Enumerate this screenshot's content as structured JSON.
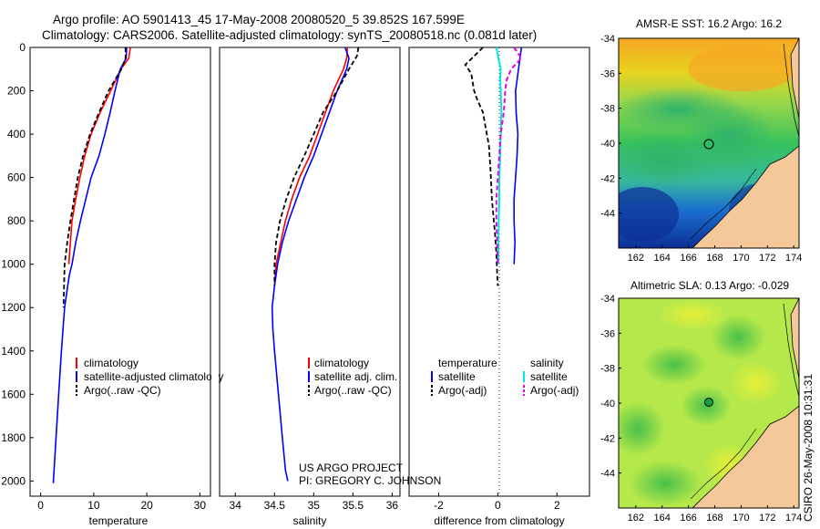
{
  "title_line1": "Argo profile: AO 5901413_45 17-May-2008 20080520_5 39.852S 167.599E",
  "title_line2": "Climatology: CARS2006. Satellite-adjusted climatology: synTS_20080518.nc (0.081d later)",
  "colors": {
    "climatology": "#ff0000",
    "satellite": "#0000ff",
    "argo": "#000000",
    "salinity_sat": "#00e5e5",
    "salinity_argo": "#e600e6",
    "land": "#f5c89a",
    "marker": "#1a9e3a"
  },
  "chart_data": [
    {
      "type": "line",
      "name": "temperature_profile",
      "xlabel": "temperature",
      "ylabel": "",
      "xlim": [
        -2,
        32
      ],
      "ylim": [
        0,
        2070
      ],
      "xticks": [
        "0",
        "10",
        "20",
        "30"
      ],
      "yticks": [
        "0",
        "200",
        "400",
        "600",
        "800",
        "1000",
        "1200",
        "1400",
        "1600",
        "1800",
        "2000"
      ],
      "legend": [
        "climatology",
        "satellite-adjusted climatology",
        "Argo(..raw -QC)"
      ],
      "series": [
        {
          "name": "climatology",
          "x": [
            16.9,
            16.6,
            15.1,
            13.2,
            11.2,
            9.5,
            8.3,
            7.4,
            6.6,
            5.9,
            5.3
          ],
          "y": [
            0,
            50,
            100,
            200,
            300,
            400,
            500,
            600,
            700,
            800,
            1000
          ]
        },
        {
          "name": "satellite-adjusted climatology",
          "x": [
            16.2,
            16.1,
            15.0,
            14.0,
            13.1,
            12.1,
            11.0,
            9.5,
            8.5,
            7.5,
            6.6,
            5.9,
            5.4,
            5.1,
            4.5,
            3.9,
            3.4,
            2.9,
            2.4,
            2.4
          ],
          "y": [
            0,
            50,
            100,
            200,
            300,
            400,
            500,
            600,
            700,
            800,
            900,
            1000,
            1050,
            1100,
            1200,
            1400,
            1600,
            1800,
            2000,
            2010
          ]
        },
        {
          "name": "Argo(..raw -QC)",
          "x": [
            16.0,
            16.0,
            15.2,
            12.8,
            11.0,
            9.3,
            8.0,
            7.0,
            6.3,
            5.6,
            5.0,
            4.5,
            4.3
          ],
          "y": [
            0,
            50,
            100,
            200,
            300,
            400,
            500,
            600,
            700,
            800,
            900,
            1000,
            1200
          ]
        }
      ]
    },
    {
      "type": "line",
      "name": "salinity_profile",
      "xlabel": "salinity",
      "xlim": [
        33.8,
        36.1
      ],
      "ylim": [
        0,
        2070
      ],
      "xticks": [
        "34",
        "34.5",
        "35",
        "35.5",
        "36"
      ],
      "legend": [
        "climatology",
        "satellite adj. clim.",
        "Argo(..raw -QC)"
      ],
      "series": [
        {
          "name": "climatology",
          "x": [
            35.43,
            35.42,
            35.38,
            35.25,
            35.15,
            35.05,
            34.95,
            34.82,
            34.72,
            34.64,
            34.58,
            34.52,
            34.5
          ],
          "y": [
            0,
            50,
            100,
            200,
            300,
            400,
            500,
            600,
            700,
            800,
            900,
            1000,
            1100
          ]
        },
        {
          "name": "satellite adj. clim.",
          "x": [
            35.4,
            35.45,
            35.42,
            35.3,
            35.2,
            35.1,
            35.0,
            34.88,
            34.78,
            34.68,
            34.6,
            34.54,
            34.5,
            34.47,
            34.48,
            34.5,
            34.55,
            34.6,
            34.64,
            34.67
          ],
          "y": [
            0,
            50,
            100,
            200,
            300,
            400,
            500,
            600,
            700,
            800,
            900,
            1000,
            1100,
            1200,
            1300,
            1400,
            1600,
            1800,
            1950,
            2000
          ]
        },
        {
          "name": "Argo(..raw -QC)",
          "x": [
            35.57,
            35.55,
            35.45,
            35.3,
            35.12,
            35.0,
            34.88,
            34.75,
            34.65,
            34.57,
            34.52,
            34.5,
            34.5
          ],
          "y": [
            0,
            40,
            100,
            200,
            300,
            400,
            500,
            600,
            700,
            800,
            900,
            1000,
            1100
          ]
        }
      ]
    },
    {
      "type": "line",
      "name": "difference_from_climatology",
      "xlabel": "difference from climatology",
      "xlim": [
        -3,
        3.1
      ],
      "ylim": [
        0,
        2070
      ],
      "xticks": [
        "-2",
        "0",
        "2"
      ],
      "legend_title_left": "temperature",
      "legend_title_right": "salinity",
      "legend": [
        "satellite",
        "Argo(-adj)",
        "satellite",
        "Argo(-adj)"
      ],
      "series": [
        {
          "name": "temperature satellite",
          "x": [
            0.8,
            0.75,
            0.7,
            0.65,
            0.6,
            0.62,
            0.68,
            0.65,
            0.6,
            0.55,
            0.55,
            0.58,
            0.55
          ],
          "y": [
            0,
            50,
            100,
            150,
            200,
            300,
            400,
            500,
            600,
            700,
            800,
            900,
            1000
          ]
        },
        {
          "name": "temperature Argo(-adj)",
          "x": [
            -0.5,
            -1.1,
            -0.9,
            -0.8,
            -0.7,
            -0.5,
            -0.4,
            -0.3,
            -0.25,
            -0.2,
            -0.1,
            -0.05,
            -0.02,
            0
          ],
          "y": [
            0,
            80,
            120,
            200,
            240,
            300,
            380,
            450,
            560,
            700,
            850,
            950,
            1050,
            1100
          ]
        },
        {
          "name": "salinity satellite",
          "x": [
            -0.05,
            0.02,
            0.1,
            0.08,
            0.1,
            0.12,
            0.1,
            0.08,
            0.05,
            0.05,
            0.03,
            0.02,
            0.02
          ],
          "y": [
            0,
            50,
            100,
            150,
            200,
            300,
            400,
            500,
            600,
            700,
            800,
            900,
            1000
          ]
        },
        {
          "name": "salinity Argo(-adj)",
          "x": [
            0.55,
            0.8,
            0.45,
            0.3,
            0.25,
            0.2,
            0.1,
            0.05,
            0,
            -0.05,
            -0.05,
            -0.02,
            0
          ],
          "y": [
            0,
            50,
            100,
            150,
            200,
            300,
            400,
            500,
            600,
            700,
            800,
            900,
            1000
          ]
        }
      ]
    }
  ],
  "map_top": {
    "title": "AMSR-E SST: 16.2 Argo: 16.2",
    "yticks": [
      "-34",
      "-36",
      "-38",
      "-40",
      "-42",
      "-44"
    ],
    "xticks": [
      "162",
      "164",
      "166",
      "168",
      "170",
      "172",
      "174"
    ]
  },
  "map_bottom": {
    "title": "Altimetric SLA: 0.13 Argo: -0.029",
    "yticks": [
      "-34",
      "-36",
      "-38",
      "-40",
      "-42",
      "-44"
    ],
    "xticks": [
      "162",
      "164",
      "166",
      "168",
      "170",
      "172",
      "174"
    ]
  },
  "credit": {
    "line1": "US ARGO PROJECT",
    "line2": "PI: GREGORY C. JOHNSON"
  },
  "timestamp": "CSIRO 26-May-2008 10:31:31"
}
